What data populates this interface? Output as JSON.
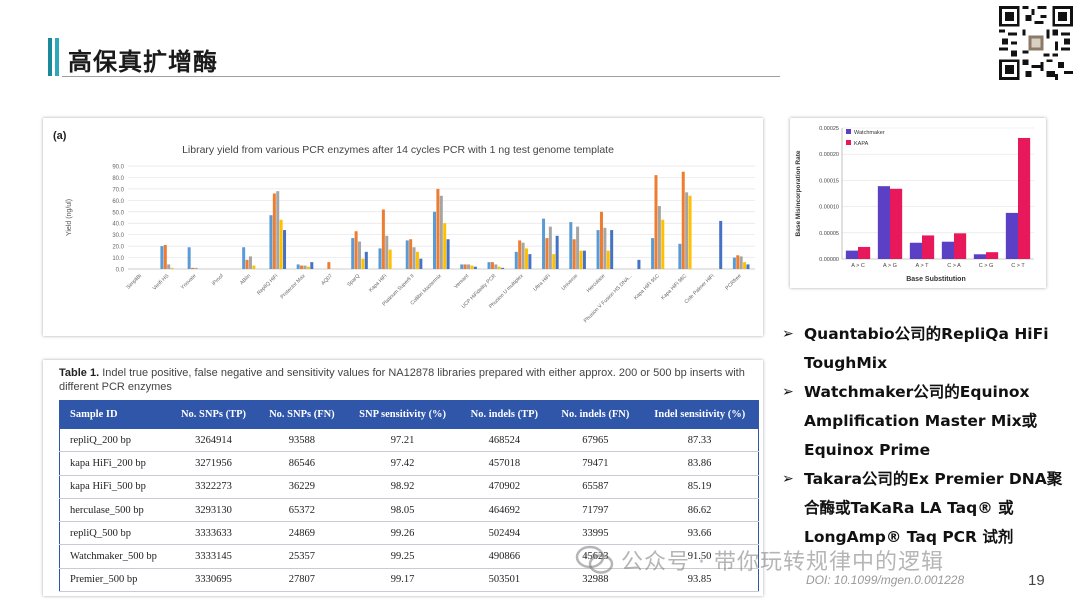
{
  "slide": {
    "title": "高保真扩增酶",
    "page_number": "19",
    "doi": "DOI: 10.1099/mgen.0.001228",
    "watermark": "公众号 · 带你玩转规律中的逻辑"
  },
  "chart_a_label": "(a)",
  "table": {
    "caption_bold": "Table 1.",
    "caption_rest": " Indel true positive, false negative and sensitivity values for NA12878 libraries prepared with either approx. 200 or 500 bp inserts with different PCR enzymes",
    "headers": [
      "Sample ID",
      "No. SNPs (TP)",
      "No. SNPs (FN)",
      "SNP sensitivity (%)",
      "No. indels (TP)",
      "No. indels (FN)",
      "Indel sensitivity (%)"
    ],
    "rows": [
      [
        "repliQ_200 bp",
        "3264914",
        "93588",
        "97.21",
        "468524",
        "67965",
        "87.33"
      ],
      [
        "kapa HiFi_200 bp",
        "3271956",
        "86546",
        "97.42",
        "457018",
        "79471",
        "83.86"
      ],
      [
        "kapa HiFi_500 bp",
        "3322273",
        "36229",
        "98.92",
        "470902",
        "65587",
        "85.19"
      ],
      [
        "herculase_500 bp",
        "3293130",
        "65372",
        "98.05",
        "464692",
        "71797",
        "86.62"
      ],
      [
        "repliQ_500 bp",
        "3333633",
        "24869",
        "99.26",
        "502494",
        "33995",
        "93.66"
      ],
      [
        "Watchmaker_500 bp",
        "3333145",
        "25357",
        "99.25",
        "490866",
        "45623",
        "91.50"
      ],
      [
        "Premier_500 bp",
        "3330695",
        "27807",
        "99.17",
        "503501",
        "32988",
        "93.85"
      ]
    ]
  },
  "bullets": [
    "Quantabio公司的RepliQa HiFi ToughMix",
    "Watchmaker公司的Equinox Amplification Master Mix或Equinox Prime",
    "Takara公司的Ex Premier DNA聚合酶或TaKaRa LA Taq® 或 LongAmp® Taq PCR 试剂"
  ],
  "bullet_marker": "➢",
  "colors": {
    "accent": "#2ca8b8",
    "table_header": "#2f56a8",
    "s1": "#5b9bd5",
    "s2": "#ed7d31",
    "s3": "#a5a5a5",
    "s4": "#ffc000",
    "s5": "#4472c4",
    "watchmaker": "#5b3fc4",
    "kapa": "#e8195a"
  },
  "chart_data": [
    {
      "type": "bar",
      "title": "Library yield from various PCR enzymes after 14 cycles PCR with 1 ng test genome template",
      "ylabel": "Yield (ng/ul)",
      "ylim": [
        0,
        90
      ],
      "yticks": [
        "0.0",
        "10.0",
        "20.0",
        "30.0",
        "40.0",
        "50.0",
        "60.0",
        "70.0",
        "80.0",
        "90.0"
      ],
      "categories": [
        "SimpliBi",
        "Verifi HS",
        "Ynovate",
        "iProof",
        "ABiIn",
        "ReplIQ HiFi",
        "Protector Max",
        "AQ07",
        "SparQ",
        "Kapa HiFi",
        "Platinum Superfi II",
        "Collibri Mastermix",
        "Vereant",
        "UCP HiFidelity PCR",
        "Phusion U multiplex",
        "Ultra HiFi",
        "Universe",
        "Herculase",
        "Phusion V Fusion HS DNA...",
        "Kapa HiFi 95C",
        "Kapa HiFi 98C",
        "Cole Palmer HiFi",
        "PCRfree"
      ],
      "series": [
        {
          "values": [
            0,
            20,
            19,
            0,
            19,
            47,
            4,
            0,
            27,
            18,
            25,
            50,
            4,
            6,
            15,
            44,
            41,
            34,
            0,
            27,
            22,
            0,
            10
          ]
        },
        {
          "values": [
            0,
            21,
            1,
            0,
            8,
            66,
            3,
            6,
            33,
            52,
            26,
            70,
            4,
            6,
            25,
            27,
            26,
            50,
            0,
            82,
            85,
            0,
            12
          ]
        },
        {
          "values": [
            0,
            4,
            1,
            0,
            11,
            68,
            3,
            0,
            24,
            29,
            19,
            64,
            4,
            4,
            23,
            37,
            37,
            36,
            0,
            55,
            67,
            0,
            11
          ]
        },
        {
          "values": [
            0,
            1,
            0,
            0,
            3,
            43,
            2,
            0,
            9,
            17,
            15,
            40,
            3,
            2,
            18,
            13,
            16,
            16,
            0,
            43,
            64,
            0,
            6
          ]
        },
        {
          "values": [
            0,
            0,
            0,
            0,
            0,
            34,
            6,
            0,
            15,
            0,
            9,
            26,
            2,
            1,
            13,
            29,
            16,
            34,
            8,
            0,
            0,
            42,
            4
          ]
        }
      ]
    },
    {
      "type": "bar",
      "xlabel": "Base Substitution",
      "ylabel": "Base Misincorporation Rate",
      "ylim": [
        0,
        0.00025
      ],
      "yticks": [
        "0.00000",
        "0.00005",
        "0.00010",
        "0.00015",
        "0.00020",
        "0.00025"
      ],
      "categories": [
        "A > C",
        "A > G",
        "A > T",
        "C > A",
        "C > G",
        "C > T"
      ],
      "series": [
        {
          "name": "Watchmaker",
          "values": [
            1.6e-05,
            0.000139,
            3.1e-05,
            3.3e-05,
            9e-06,
            8.8e-05
          ]
        },
        {
          "name": "KAPA",
          "values": [
            2.3e-05,
            0.000134,
            4.5e-05,
            4.9e-05,
            1.3e-05,
            0.000231
          ]
        }
      ]
    }
  ]
}
